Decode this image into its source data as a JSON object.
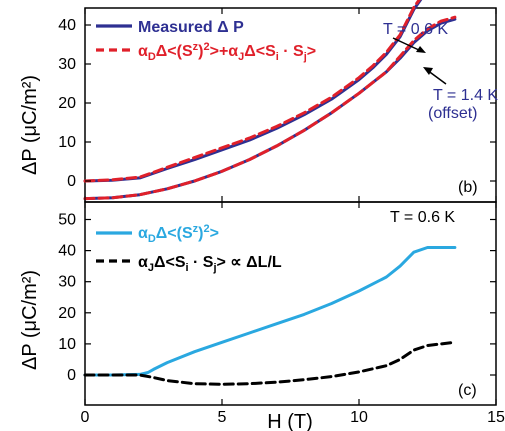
{
  "figure": {
    "xlabel": "H (T)",
    "x_ticks": [
      "0",
      "5",
      "10",
      "15"
    ],
    "y_ticks": [
      "0",
      "10",
      "20",
      "30",
      "40",
      "50"
    ]
  },
  "chart_data": [
    {
      "type": "line",
      "panel_label": "(b)",
      "ylabel": "ΔP (μC/m²)",
      "xlim": [
        0,
        15
      ],
      "ylim": [
        -5,
        54
      ],
      "grid": false,
      "legend_position": "top-left",
      "legend": [
        {
          "name": "Measured Δ P",
          "style": "solid",
          "color": "#2e3092"
        },
        {
          "name": "αDΔ<(Sz)2>+αJΔ<Si · Sj>",
          "style": "dashed",
          "color": "#e0202a"
        }
      ],
      "series": [
        {
          "name": "Measured Δ P",
          "condition": "T = 0.6 K",
          "style": "solid",
          "color": "#2e3092",
          "x": [
            0,
            1,
            2,
            2.5,
            3,
            4,
            5,
            6,
            7,
            8,
            9,
            10,
            10.5,
            11,
            11.5,
            12,
            12.5,
            13,
            13.5
          ],
          "y": [
            0,
            0.2,
            0.8,
            2,
            3.2,
            5.5,
            8,
            10.5,
            13.5,
            17,
            21,
            26,
            29,
            32.5,
            37,
            44,
            49,
            49.5,
            49.5
          ]
        },
        {
          "name": "αDΔ<(Sz)2>+αJΔ<Si · Sj>",
          "condition": "T = 0.6 K",
          "style": "dashed",
          "color": "#e0202a",
          "x": [
            0,
            1,
            2,
            2.5,
            3,
            4,
            5,
            6,
            7,
            8,
            9,
            10,
            10.5,
            11,
            11.5,
            12,
            12.5,
            13,
            13.5
          ],
          "y": [
            0,
            0.3,
            1,
            2.2,
            3.5,
            6,
            8.5,
            11,
            14,
            17.5,
            21.5,
            26.5,
            29.5,
            33,
            37.5,
            44.5,
            49.5,
            50,
            50
          ]
        },
        {
          "name": "Measured Δ P",
          "condition": "T = 1.4 K (offset)",
          "style": "solid",
          "color": "#2e3092",
          "x": [
            0,
            1,
            2,
            3,
            4,
            5,
            6,
            7,
            8,
            9,
            10,
            11,
            11.5,
            12,
            12.5,
            13,
            13.5
          ],
          "y": [
            -4.5,
            -4.3,
            -3.5,
            -2,
            0,
            2.5,
            5.5,
            9,
            13,
            17.5,
            22.5,
            28,
            31.5,
            35.5,
            38.5,
            40.5,
            41.5
          ]
        },
        {
          "name": "αDΔ<(Sz)2>+αJΔ<Si · Sj>",
          "condition": "T = 1.4 K (offset)",
          "style": "dashed",
          "color": "#e0202a",
          "x": [
            0,
            1,
            2,
            3,
            4,
            5,
            6,
            7,
            8,
            9,
            10,
            11,
            11.5,
            12,
            12.5,
            13,
            13.5
          ],
          "y": [
            -4.5,
            -4.3,
            -3.5,
            -2,
            0,
            2.5,
            5.5,
            9,
            13,
            17.5,
            22.5,
            28,
            32,
            36,
            39,
            41,
            42
          ]
        }
      ],
      "annotations": [
        {
          "text": "T = 0.6 K",
          "points_to_x": 11.6
        },
        {
          "text": "T = 1.4 K",
          "points_to_x": 12.3
        },
        {
          "text": "(offset)"
        }
      ]
    },
    {
      "type": "line",
      "panel_label": "(c)",
      "ylabel": "ΔP (μC/m²)",
      "xlabel": "H (T)",
      "xlim": [
        0,
        15
      ],
      "ylim": [
        -5,
        54
      ],
      "grid": false,
      "legend_position": "top-left",
      "legend": [
        {
          "name": "αDΔ<(Sz)2>",
          "style": "solid",
          "color": "#2aa8e0"
        },
        {
          "name": "αJΔ<Si · Sj> ∝ ΔL/L",
          "style": "dashed",
          "color": "#000000"
        }
      ],
      "title_annotation": "T = 0.6 K",
      "series": [
        {
          "name": "αDΔ<(Sz)2>",
          "style": "solid",
          "color": "#2aa8e0",
          "x": [
            0,
            1,
            2,
            2.3,
            2.5,
            3,
            4,
            5,
            6,
            7,
            8,
            9,
            10,
            11,
            11.5,
            12,
            12.5,
            13,
            13.5
          ],
          "y": [
            0,
            0,
            0.2,
            0.8,
            1.8,
            4,
            7.5,
            10.5,
            13.5,
            16.5,
            19.5,
            23,
            27,
            31.5,
            35,
            39.5,
            41,
            41,
            41
          ]
        },
        {
          "name": "αJΔ<Si · Sj> ∝ ΔL/L",
          "style": "dashed",
          "color": "#000000",
          "x": [
            0,
            1,
            2,
            2.5,
            3,
            4,
            5,
            6,
            7,
            8,
            9,
            10,
            11,
            11.5,
            12,
            12.5,
            13,
            13.5
          ],
          "y": [
            0,
            0,
            0,
            -0.8,
            -1.8,
            -2.8,
            -3,
            -2.8,
            -2.3,
            -1.5,
            -0.5,
            1,
            3,
            5,
            8,
            9.5,
            10,
            10.5
          ]
        }
      ]
    }
  ]
}
